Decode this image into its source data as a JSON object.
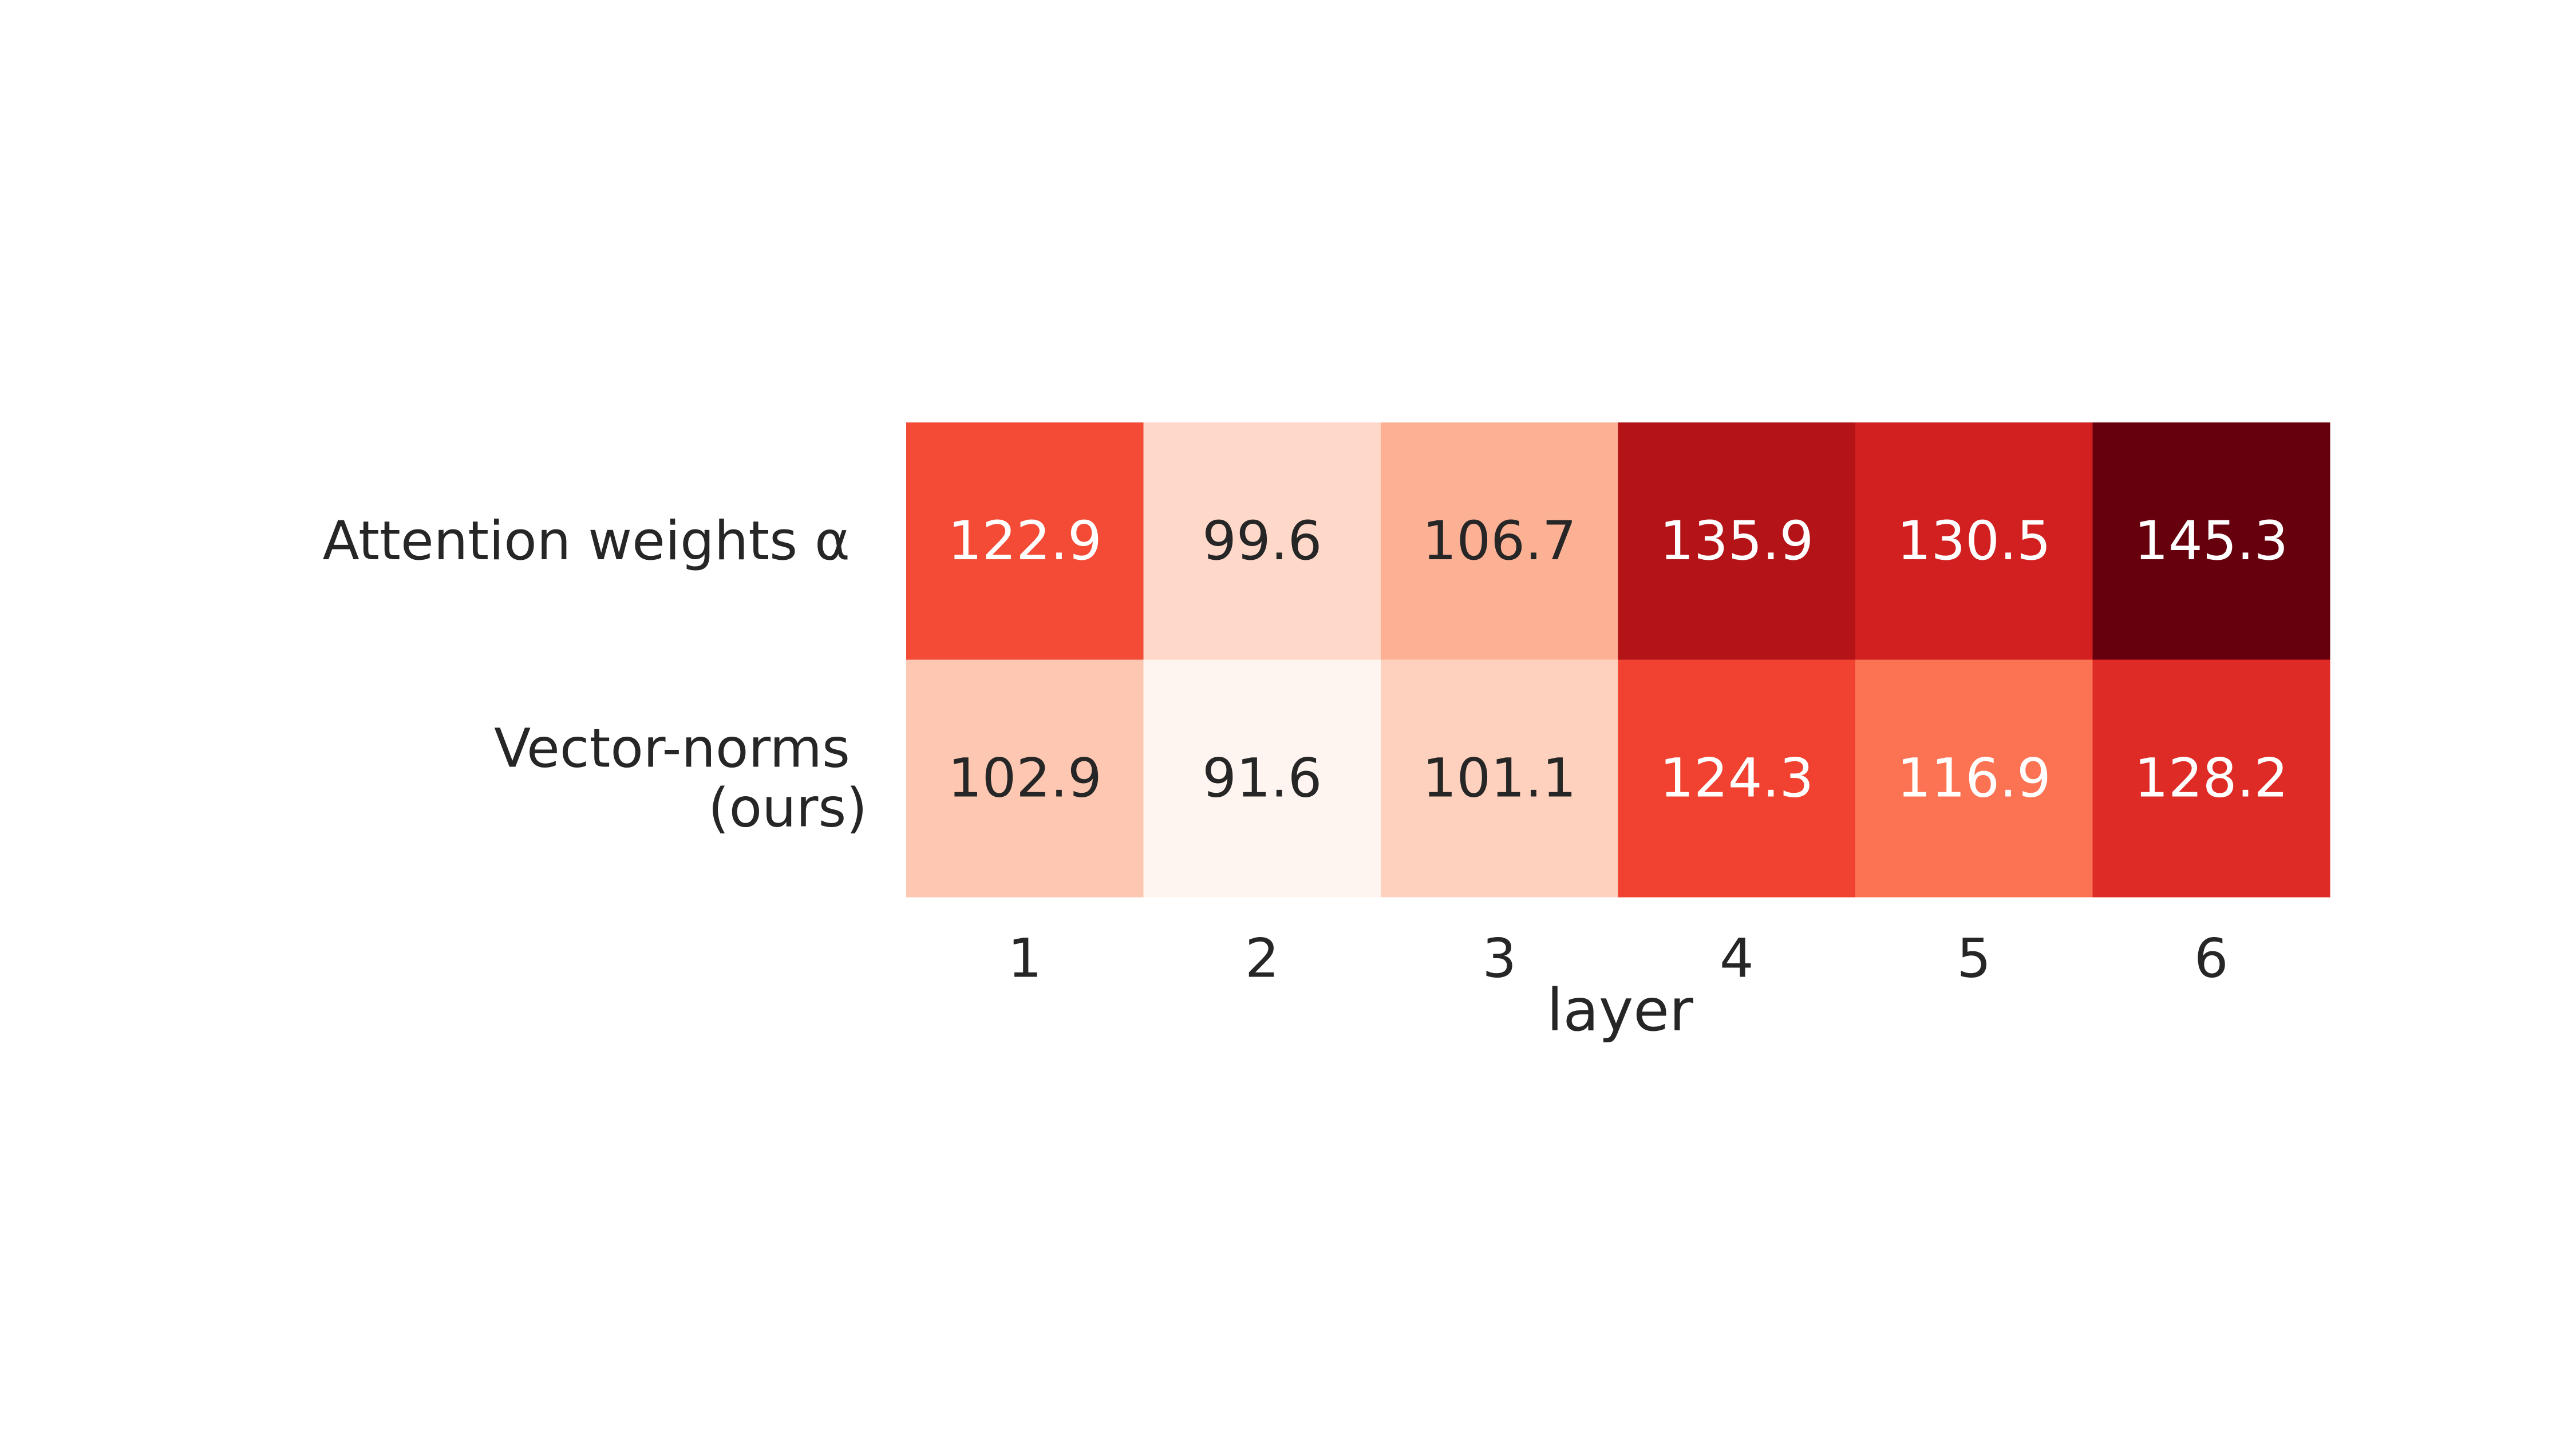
{
  "chart_data": {
    "type": "heatmap",
    "title": "",
    "xlabel": "layer",
    "ylabel": "",
    "x_categories": [
      "1",
      "2",
      "3",
      "4",
      "5",
      "6"
    ],
    "rows": [
      {
        "label_lines": [
          "Attention weights α"
        ],
        "values": [
          122.9,
          99.6,
          106.7,
          135.9,
          130.5,
          145.3
        ]
      },
      {
        "label_lines": [
          "Vector-norms",
          "(ours)"
        ],
        "values": [
          102.9,
          91.6,
          101.1,
          124.3,
          116.9,
          128.2
        ]
      }
    ],
    "value_format": "0.1f",
    "colormap": "Reds",
    "color_stops": [
      "#fff5f0",
      "#fee0d2",
      "#fcbba1",
      "#fc9272",
      "#fb6a4a",
      "#ef3b2c",
      "#cb181d",
      "#a50f15",
      "#67000d"
    ],
    "color_range": [
      91.6,
      145.3
    ],
    "text_colors": {
      "light": "#ffffff",
      "dark": "#262626"
    },
    "grid": false,
    "legend": false
  }
}
